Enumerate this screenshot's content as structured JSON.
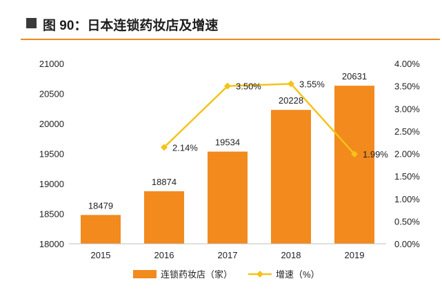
{
  "title": "图 90：日本连锁药妆店及增速",
  "colors": {
    "bar": "#F28A1E",
    "line": "#F5C218",
    "accent": "#EF8A1A",
    "text": "#222222"
  },
  "chart_data": {
    "type": "bar+line",
    "categories": [
      "2015",
      "2016",
      "2017",
      "2018",
      "2019"
    ],
    "series": [
      {
        "name": "连锁药妆店（家）",
        "type": "bar",
        "axis": "left",
        "values": [
          18479,
          18874,
          19534,
          20228,
          20631
        ],
        "labels": [
          "18479",
          "18874",
          "19534",
          "20228",
          "20631"
        ]
      },
      {
        "name": "增速（%）",
        "type": "line",
        "axis": "right",
        "values": [
          null,
          2.14,
          3.5,
          3.55,
          1.99
        ],
        "labels": [
          "",
          "2.14%",
          "3.50%",
          "3.55%",
          "1.99%"
        ]
      }
    ],
    "y_left": {
      "min": 18000,
      "max": 21000,
      "ticks": [
        18000,
        18500,
        19000,
        19500,
        20000,
        20500,
        21000
      ],
      "tick_labels": [
        "18000",
        "18500",
        "19000",
        "19500",
        "20000",
        "20500",
        "21000"
      ]
    },
    "y_right": {
      "min": 0,
      "max": 4,
      "ticks": [
        0,
        0.5,
        1,
        1.5,
        2,
        2.5,
        3,
        3.5,
        4
      ],
      "tick_labels": [
        "0.00%",
        "0.50%",
        "1.00%",
        "1.50%",
        "2.00%",
        "2.50%",
        "3.00%",
        "3.50%",
        "4.00%"
      ]
    },
    "legend": [
      "连锁药妆店（家）",
      "增速（%）"
    ],
    "legend_position": "bottom",
    "grid": false
  }
}
